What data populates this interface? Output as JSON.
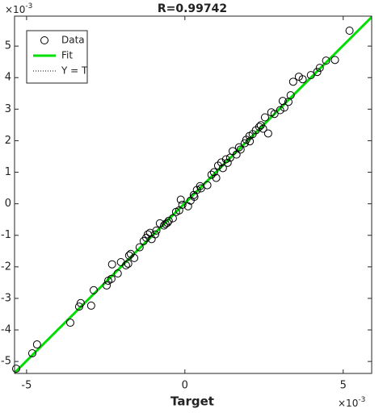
{
  "chart_data": {
    "type": "scatter",
    "title": "R=0.99742",
    "xlabel": "Target",
    "x_multiplier": {
      "base": "×10",
      "power": "-3"
    },
    "y_multiplier": {
      "base": "×10",
      "power": "-3"
    },
    "xlim": [
      -5.38,
      5.9
    ],
    "ylim": [
      -5.38,
      5.95
    ],
    "xticks": [
      -5,
      0,
      5
    ],
    "yticks": [
      -5,
      -4,
      -3,
      -2,
      -1,
      0,
      1,
      2,
      3,
      4,
      5
    ],
    "legend": "upper-left",
    "series": [
      {
        "name": "Data",
        "type": "scatter",
        "color": "#000000",
        "x": [
          -5.33,
          -4.82,
          -4.67,
          -3.62,
          -3.34,
          -3.29,
          -2.96,
          -2.88,
          -2.47,
          -2.42,
          -2.32,
          -2.3,
          -2.12,
          -2.02,
          -1.86,
          -1.76,
          -1.71,
          -1.79,
          -1.43,
          -1.3,
          -1.22,
          -1.17,
          -1.1,
          -0.94,
          -0.79,
          -0.66,
          -0.61,
          -0.51,
          -0.38,
          -0.28,
          -0.18,
          -0.08,
          -0.13,
          0.1,
          0.18,
          0.28,
          0.38,
          0.48,
          0.51,
          0.71,
          0.84,
          0.92,
          0.99,
          1.05,
          1.15,
          1.2,
          1.3,
          1.43,
          1.51,
          1.63,
          1.71,
          1.76,
          1.89,
          1.94,
          2.04,
          2.14,
          2.24,
          2.35,
          2.4,
          2.47,
          2.53,
          2.63,
          2.73,
          2.83,
          3.01,
          3.09,
          3.14,
          3.27,
          3.34,
          3.42,
          3.6,
          3.72,
          3.98,
          4.18,
          4.26,
          4.46,
          4.74,
          5.2,
          -1.05,
          -0.55,
          0.3,
          1.35,
          2.05,
          -1.6,
          -0.9
        ],
        "values": [
          -5.23,
          -4.74,
          -4.46,
          -3.77,
          -3.26,
          -3.15,
          -3.23,
          -2.74,
          -2.59,
          -2.44,
          -2.38,
          -1.92,
          -2.21,
          -1.85,
          -1.95,
          -1.64,
          -1.59,
          -1.9,
          -1.38,
          -1.18,
          -1.08,
          -0.97,
          -0.92,
          -0.97,
          -0.62,
          -0.69,
          -0.64,
          -0.54,
          -0.46,
          -0.26,
          -0.21,
          -0.03,
          0.13,
          -0.08,
          0.1,
          0.28,
          0.44,
          0.56,
          0.49,
          0.59,
          0.92,
          1.0,
          0.82,
          1.21,
          1.31,
          1.13,
          1.41,
          1.46,
          1.67,
          1.56,
          1.79,
          1.72,
          1.92,
          2.03,
          2.15,
          2.21,
          2.33,
          2.44,
          2.49,
          2.38,
          2.74,
          2.23,
          2.9,
          2.85,
          2.97,
          3.26,
          3.05,
          3.23,
          3.44,
          3.87,
          4.03,
          3.95,
          4.08,
          4.18,
          4.31,
          4.54,
          4.56,
          5.49,
          -1.12,
          -0.6,
          0.22,
          1.3,
          1.98,
          -1.72,
          -0.85
        ]
      },
      {
        "name": "Fit",
        "type": "line",
        "color": "#00dd00",
        "x": [
          -5.38,
          5.9
        ],
        "values": [
          -5.36,
          5.92
        ]
      },
      {
        "name": "Y = T",
        "type": "line",
        "color": "#000000",
        "dash": "dotted",
        "x": [
          -5.38,
          5.9
        ],
        "values": [
          -5.38,
          5.9
        ]
      }
    ]
  }
}
